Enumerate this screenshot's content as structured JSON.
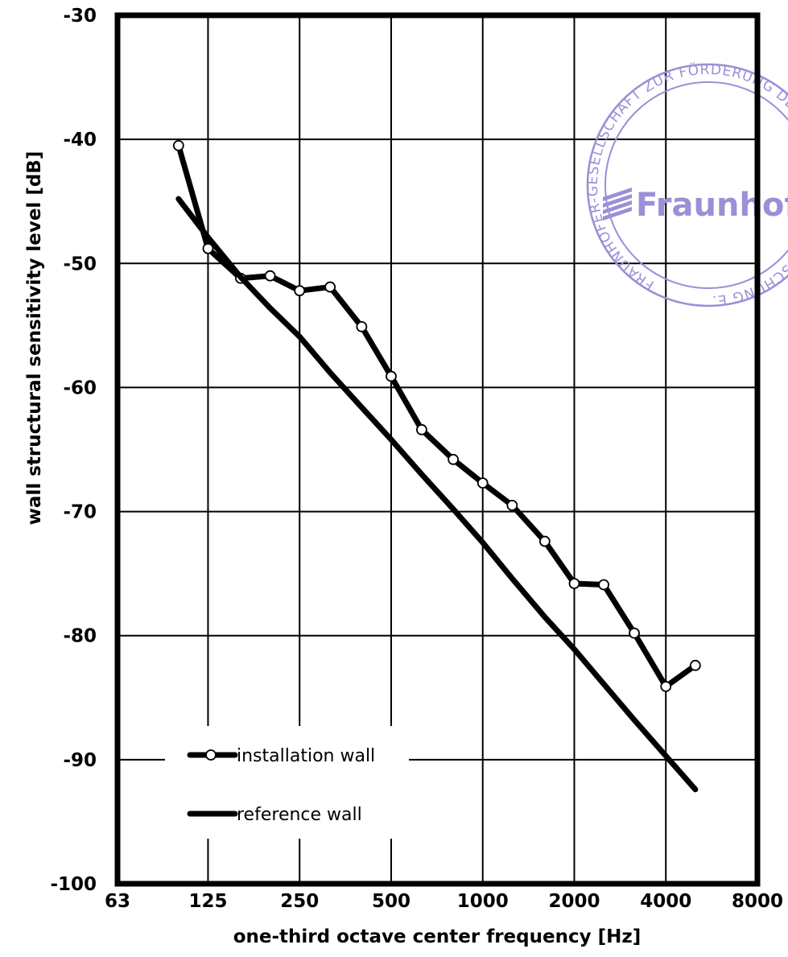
{
  "chart_data": {
    "type": "line",
    "title": "",
    "xlabel": "one-third octave center frequency  [Hz]",
    "ylabel": "wall structural sensitivity level  [dB]",
    "x_scale": "log2",
    "xlim": [
      63,
      8000
    ],
    "ylim": [
      -100,
      -30
    ],
    "x_ticks": [
      "63",
      "125",
      "250",
      "500",
      "1000",
      "2000",
      "4000",
      "8000"
    ],
    "y_ticks": [
      "-30",
      "-40",
      "-50",
      "-60",
      "-70",
      "-80",
      "-90",
      "-100"
    ],
    "grid": true,
    "legend_position": "bottom-left",
    "series": [
      {
        "name": "installation wall",
        "marker": "open-circle",
        "color": "#000000",
        "x": [
          100,
          125,
          160,
          200,
          250,
          315,
          400,
          500,
          630,
          800,
          1000,
          1250,
          1600,
          2000,
          2500,
          3150,
          4000,
          5000
        ],
        "y": [
          -40.5,
          -48.8,
          -51.2,
          -51.0,
          -52.2,
          -51.9,
          -55.1,
          -59.1,
          -63.4,
          -65.8,
          -67.7,
          -69.5,
          -72.4,
          -75.8,
          -75.9,
          -79.8,
          -84.1,
          -82.4
        ]
      },
      {
        "name": "reference wall",
        "marker": "none",
        "color": "#000000",
        "x": [
          100,
          125,
          160,
          200,
          250,
          315,
          400,
          500,
          630,
          800,
          1000,
          1250,
          1600,
          2000,
          2500,
          3150,
          4000,
          5000
        ],
        "y": [
          -44.8,
          -47.9,
          -51.1,
          -53.6,
          -55.9,
          -58.8,
          -61.6,
          -64.2,
          -67.0,
          -69.8,
          -72.5,
          -75.4,
          -78.5,
          -81.1,
          -83.9,
          -86.8,
          -89.7,
          -92.4
        ]
      }
    ]
  },
  "stamp": {
    "ring_text": "FRAUNHOFER-GESELLSCHAFT ZUR FÖRDERUNG DER ANGEWANDTEN FORSCHUNG E.V.",
    "logo_text": "Fraunhofer",
    "color": "#9b8fd6"
  }
}
